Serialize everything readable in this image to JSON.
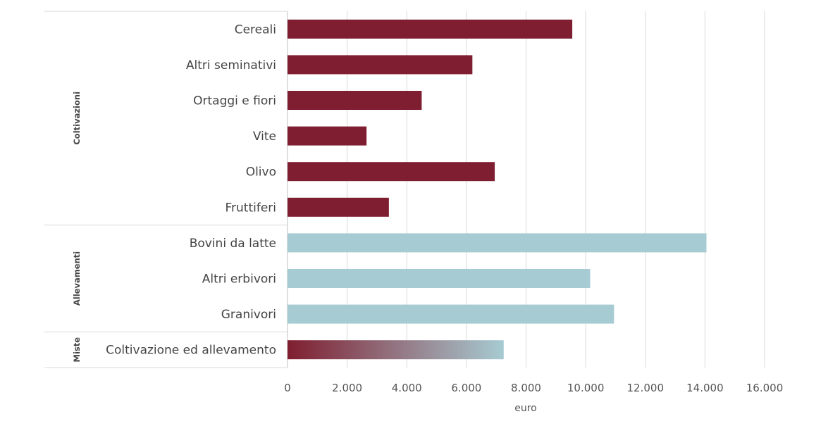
{
  "chart_data": {
    "type": "bar",
    "orientation": "horizontal",
    "xlabel": "euro",
    "xlim": [
      0,
      16000
    ],
    "xticks": [
      0,
      2000,
      4000,
      6000,
      8000,
      10000,
      12000,
      14000,
      16000
    ],
    "xtick_labels": [
      "0",
      "2.000",
      "4.000",
      "6.000",
      "8.000",
      "10.000",
      "12.000",
      "14.000",
      "16.000"
    ],
    "grid": "vertical",
    "groups": [
      {
        "name": "Coltivazioni",
        "color": "#7f1e30"
      },
      {
        "name": "Allevamenti",
        "color": "#a7cbd2"
      },
      {
        "name": "Miste",
        "color": "gradient #7f1e30 to #a7cbd2"
      }
    ],
    "categories": [
      {
        "label": "Cereali",
        "value": 9550,
        "group": "Coltivazioni"
      },
      {
        "label": "Altri seminativi",
        "value": 6200,
        "group": "Coltivazioni"
      },
      {
        "label": "Ortaggi e fiori",
        "value": 4500,
        "group": "Coltivazioni"
      },
      {
        "label": "Vite",
        "value": 2650,
        "group": "Coltivazioni"
      },
      {
        "label": "Olivo",
        "value": 6950,
        "group": "Coltivazioni"
      },
      {
        "label": "Fruttiferi",
        "value": 3400,
        "group": "Coltivazioni"
      },
      {
        "label": "Bovini da latte",
        "value": 14050,
        "group": "Allevamenti"
      },
      {
        "label": "Altri erbivori",
        "value": 10150,
        "group": "Allevamenti"
      },
      {
        "label": "Granivori",
        "value": 10950,
        "group": "Allevamenti"
      },
      {
        "label": "Coltivazione ed allevamento",
        "value": 7250,
        "group": "Miste"
      }
    ]
  }
}
